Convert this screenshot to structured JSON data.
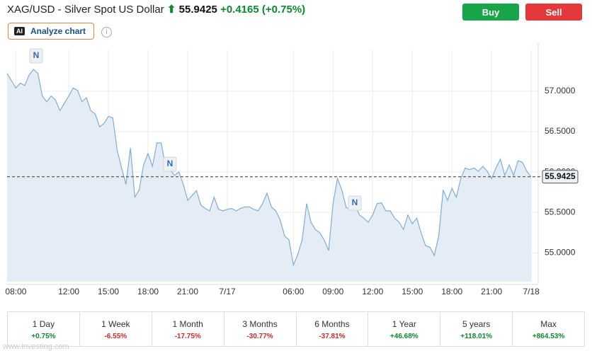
{
  "header": {
    "symbol": "XAG/USD - Silver Spot US Dollar",
    "change": "+0.4165",
    "change_percent": "(+0.75%)"
  },
  "buttons": {
    "buy": "Buy",
    "sell": "Sell",
    "ai_badge": "AI",
    "analyze": "Analyze chart",
    "info": "i"
  },
  "chart_data": {
    "type": "area",
    "watermark": "Investing.com",
    "color": "#7eaed6",
    "fill": "#e4edf5",
    "grid": true,
    "last_price": 55.9425,
    "ylim": [
      54.645,
      57.515
    ],
    "yticks": [
      {
        "value": 55,
        "label": "55.0000"
      },
      {
        "value": 55.5,
        "label": "55.5000"
      },
      {
        "value": 56,
        "label": "56.0000"
      },
      {
        "value": 56.5,
        "label": "56.5000"
      },
      {
        "value": 57,
        "label": "57.0000"
      }
    ],
    "categories": [
      null,
      null,
      "08:00",
      null,
      null,
      null,
      null,
      null,
      null,
      null,
      null,
      null,
      null,
      null,
      "12:00",
      null,
      null,
      null,
      null,
      null,
      null,
      null,
      null,
      "15:00",
      null,
      null,
      null,
      null,
      null,
      null,
      null,
      null,
      "18:00",
      null,
      null,
      null,
      null,
      null,
      null,
      null,
      null,
      "21:00",
      null,
      null,
      null,
      null,
      null,
      null,
      null,
      null,
      "7/17",
      null,
      null,
      null,
      null,
      null,
      null,
      null,
      null,
      null,
      null,
      null,
      null,
      null,
      null,
      "06:00",
      null,
      null,
      null,
      null,
      null,
      null,
      null,
      null,
      "09:00",
      null,
      null,
      null,
      null,
      null,
      null,
      null,
      null,
      "12:00",
      null,
      null,
      null,
      null,
      null,
      null,
      null,
      null,
      "15:00",
      null,
      null,
      null,
      null,
      null,
      null,
      null,
      null,
      "18:00",
      null,
      null,
      null,
      null,
      null,
      null,
      null,
      null,
      "21:00",
      null,
      null,
      null,
      null,
      null,
      null,
      null,
      null,
      "7/18"
    ],
    "values": [
      57.22,
      57.13,
      57.04,
      57.1,
      57.07,
      57.2,
      57.27,
      57.22,
      56.94,
      56.87,
      56.94,
      56.89,
      56.76,
      56.85,
      56.94,
      57.04,
      57.01,
      56.87,
      56.92,
      56.76,
      56.72,
      56.56,
      56.6,
      56.69,
      56.67,
      56.27,
      56.05,
      55.85,
      56.3,
      55.69,
      55.78,
      56.09,
      56.23,
      56.07,
      56.36,
      56.36,
      56.05,
      56.03,
      55.96,
      56.0,
      55.85,
      55.65,
      55.71,
      55.77,
      55.59,
      55.55,
      55.52,
      55.69,
      55.54,
      55.52,
      55.54,
      55.55,
      55.52,
      55.55,
      55.57,
      55.57,
      55.54,
      55.52,
      55.61,
      55.74,
      55.57,
      55.52,
      55.41,
      55.21,
      55.16,
      54.85,
      54.98,
      55.16,
      55.61,
      55.38,
      55.29,
      55.25,
      55.16,
      55.03,
      55.61,
      55.92,
      55.78,
      55.56,
      55.54,
      55.59,
      55.47,
      55.43,
      55.38,
      55.47,
      55.61,
      55.62,
      55.52,
      55.52,
      55.43,
      55.38,
      55.29,
      55.47,
      55.36,
      55.43,
      55.25,
      55.09,
      55.07,
      54.97,
      55.21,
      55.78,
      55.65,
      55.8,
      55.69,
      55.92,
      56.05,
      56.03,
      56.05,
      56.01,
      56.07,
      56.01,
      55.92,
      56.05,
      56.16,
      55.96,
      56.09,
      55.96,
      56.14,
      56.12,
      56.01,
      55.94
    ],
    "annotations": [
      {
        "text": "N"
      },
      {
        "text": "N"
      },
      {
        "text": "N"
      }
    ]
  },
  "periods": [
    {
      "label": "1 Day",
      "change": "+0.75%"
    },
    {
      "label": "1 Week",
      "change": "-6.55%"
    },
    {
      "label": "1 Month",
      "change": "-17.75%"
    },
    {
      "label": "3 Months",
      "change": "-30.77%"
    },
    {
      "label": "6 Months",
      "change": "-37.81%"
    },
    {
      "label": "1 Year",
      "change": "+46.68%"
    },
    {
      "label": "5 years",
      "change": "+118.01%"
    },
    {
      "label": "Max",
      "change": "+864.53%"
    }
  ],
  "footer_url": "www.investing.com"
}
